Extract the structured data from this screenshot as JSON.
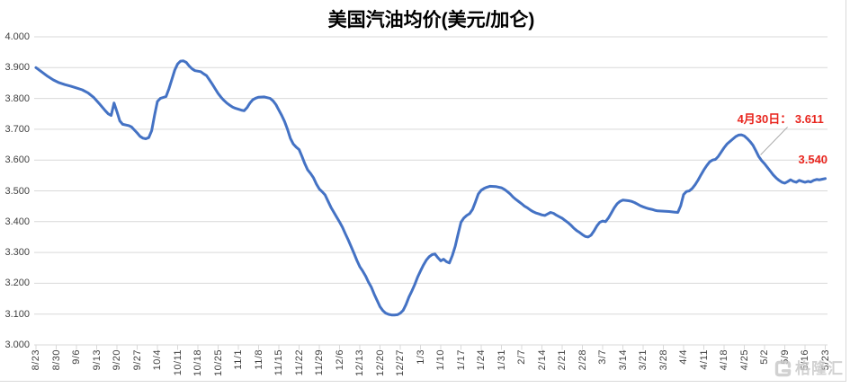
{
  "chart_data": {
    "type": "line",
    "title": "美国汽油均价(美元/加仑)",
    "xlabel": "",
    "ylabel": "",
    "ylim": [
      3.0,
      4.0
    ],
    "ytick_step": 0.1,
    "grid": "horizontal",
    "legend": "none",
    "series_name": "美国汽油均价",
    "ytick_labels": [
      "4.000",
      "3.900",
      "3.800",
      "3.700",
      "3.600",
      "3.500",
      "3.400",
      "3.300",
      "3.200",
      "3.100",
      "3.000"
    ],
    "xtick_labels": [
      "8/23",
      "8/30",
      "9/6",
      "9/13",
      "9/20",
      "9/27",
      "10/4",
      "10/11",
      "10/18",
      "10/25",
      "11/1",
      "11/8",
      "11/15",
      "11/22",
      "11/29",
      "12/6",
      "12/13",
      "12/20",
      "12/27",
      "1/3",
      "1/10",
      "1/17",
      "1/24",
      "1/31",
      "2/7",
      "2/14",
      "2/21",
      "2/28",
      "3/7",
      "3/14",
      "3/21",
      "3/28",
      "4/4",
      "4/11",
      "4/18",
      "4/25",
      "5/2",
      "5/9",
      "5/16",
      "5/23"
    ],
    "points": [
      [
        "8/23",
        3.9
      ],
      [
        "8/25",
        3.886
      ],
      [
        "8/27",
        3.872
      ],
      [
        "8/29",
        3.86
      ],
      [
        "8/31",
        3.851
      ],
      [
        "9/2",
        3.845
      ],
      [
        "9/4",
        3.84
      ],
      [
        "9/6",
        3.834
      ],
      [
        "9/8",
        3.828
      ],
      [
        "9/10",
        3.818
      ],
      [
        "9/12",
        3.803
      ],
      [
        "9/14",
        3.782
      ],
      [
        "9/16",
        3.76
      ],
      [
        "9/17",
        3.75
      ],
      [
        "9/18",
        3.745
      ],
      [
        "9/19",
        3.785
      ],
      [
        "9/20",
        3.757
      ],
      [
        "9/21",
        3.727
      ],
      [
        "9/22",
        3.716
      ],
      [
        "9/24",
        3.712
      ],
      [
        "9/25",
        3.708
      ],
      [
        "9/26",
        3.698
      ],
      [
        "9/27",
        3.688
      ],
      [
        "9/28",
        3.677
      ],
      [
        "9/29",
        3.671
      ],
      [
        "9/30",
        3.669
      ],
      [
        "10/1",
        3.673
      ],
      [
        "10/2",
        3.695
      ],
      [
        "10/3",
        3.745
      ],
      [
        "10/4",
        3.79
      ],
      [
        "10/5",
        3.8
      ],
      [
        "10/7",
        3.806
      ],
      [
        "10/8",
        3.832
      ],
      [
        "10/9",
        3.862
      ],
      [
        "10/10",
        3.892
      ],
      [
        "10/11",
        3.912
      ],
      [
        "10/12",
        3.921
      ],
      [
        "10/13",
        3.922
      ],
      [
        "10/14",
        3.917
      ],
      [
        "10/15",
        3.905
      ],
      [
        "10/16",
        3.896
      ],
      [
        "10/17",
        3.89
      ],
      [
        "10/19",
        3.887
      ],
      [
        "10/20",
        3.88
      ],
      [
        "10/21",
        3.874
      ],
      [
        "10/22",
        3.86
      ],
      [
        "10/23",
        3.846
      ],
      [
        "10/24",
        3.831
      ],
      [
        "10/25",
        3.816
      ],
      [
        "10/26",
        3.804
      ],
      [
        "10/27",
        3.794
      ],
      [
        "10/28",
        3.785
      ],
      [
        "10/29",
        3.778
      ],
      [
        "10/30",
        3.772
      ],
      [
        "10/31",
        3.768
      ],
      [
        "11/2",
        3.762
      ],
      [
        "11/3",
        3.76
      ],
      [
        "11/4",
        3.77
      ],
      [
        "11/5",
        3.785
      ],
      [
        "11/6",
        3.796
      ],
      [
        "11/7",
        3.801
      ],
      [
        "11/8",
        3.804
      ],
      [
        "11/10",
        3.805
      ],
      [
        "11/12",
        3.8
      ],
      [
        "11/13",
        3.792
      ],
      [
        "11/14",
        3.78
      ],
      [
        "11/15",
        3.762
      ],
      [
        "11/16",
        3.745
      ],
      [
        "11/17",
        3.725
      ],
      [
        "11/18",
        3.7
      ],
      [
        "11/19",
        3.67
      ],
      [
        "11/20",
        3.652
      ],
      [
        "11/21",
        3.642
      ],
      [
        "11/22",
        3.634
      ],
      [
        "11/23",
        3.612
      ],
      [
        "11/24",
        3.588
      ],
      [
        "11/25",
        3.568
      ],
      [
        "11/26",
        3.556
      ],
      [
        "11/27",
        3.542
      ],
      [
        "11/28",
        3.522
      ],
      [
        "11/29",
        3.506
      ],
      [
        "11/30",
        3.497
      ],
      [
        "12/1",
        3.487
      ],
      [
        "12/2",
        3.467
      ],
      [
        "12/3",
        3.447
      ],
      [
        "12/4",
        3.431
      ],
      [
        "12/5",
        3.415
      ],
      [
        "12/6",
        3.399
      ],
      [
        "12/7",
        3.382
      ],
      [
        "12/8",
        3.361
      ],
      [
        "12/9",
        3.341
      ],
      [
        "12/10",
        3.319
      ],
      [
        "12/11",
        3.297
      ],
      [
        "12/12",
        3.274
      ],
      [
        "12/13",
        3.254
      ],
      [
        "12/14",
        3.24
      ],
      [
        "12/15",
        3.224
      ],
      [
        "12/16",
        3.204
      ],
      [
        "12/17",
        3.187
      ],
      [
        "12/18",
        3.164
      ],
      [
        "12/19",
        3.144
      ],
      [
        "12/20",
        3.124
      ],
      [
        "12/21",
        3.111
      ],
      [
        "12/22",
        3.103
      ],
      [
        "12/23",
        3.099
      ],
      [
        "12/24",
        3.097
      ],
      [
        "12/25",
        3.097
      ],
      [
        "12/26",
        3.098
      ],
      [
        "12/27",
        3.103
      ],
      [
        "12/28",
        3.112
      ],
      [
        "12/29",
        3.131
      ],
      [
        "12/30",
        3.155
      ],
      [
        "12/31",
        3.175
      ],
      [
        "1/1",
        3.196
      ],
      [
        "1/2",
        3.22
      ],
      [
        "1/3",
        3.24
      ],
      [
        "1/4",
        3.259
      ],
      [
        "1/5",
        3.275
      ],
      [
        "1/6",
        3.286
      ],
      [
        "1/7",
        3.293
      ],
      [
        "1/8",
        3.295
      ],
      [
        "1/9",
        3.283
      ],
      [
        "1/10",
        3.273
      ],
      [
        "1/11",
        3.278
      ],
      [
        "1/12",
        3.27
      ],
      [
        "1/13",
        3.266
      ],
      [
        "1/14",
        3.29
      ],
      [
        "1/15",
        3.32
      ],
      [
        "1/16",
        3.36
      ],
      [
        "1/17",
        3.398
      ],
      [
        "1/18",
        3.412
      ],
      [
        "1/19",
        3.42
      ],
      [
        "1/20",
        3.426
      ],
      [
        "1/21",
        3.44
      ],
      [
        "1/22",
        3.464
      ],
      [
        "1/23",
        3.49
      ],
      [
        "1/24",
        3.502
      ],
      [
        "1/25",
        3.508
      ],
      [
        "1/26",
        3.512
      ],
      [
        "1/27",
        3.515
      ],
      [
        "1/29",
        3.514
      ],
      [
        "1/31",
        3.51
      ],
      [
        "2/1",
        3.505
      ],
      [
        "2/2",
        3.498
      ],
      [
        "2/3",
        3.49
      ],
      [
        "2/4",
        3.48
      ],
      [
        "2/5",
        3.472
      ],
      [
        "2/6",
        3.465
      ],
      [
        "2/7",
        3.458
      ],
      [
        "2/8",
        3.45
      ],
      [
        "2/9",
        3.445
      ],
      [
        "2/10",
        3.438
      ],
      [
        "2/11",
        3.432
      ],
      [
        "2/12",
        3.428
      ],
      [
        "2/13",
        3.425
      ],
      [
        "2/14",
        3.422
      ],
      [
        "2/15",
        3.42
      ],
      [
        "2/16",
        3.425
      ],
      [
        "2/17",
        3.43
      ],
      [
        "2/18",
        3.427
      ],
      [
        "2/19",
        3.421
      ],
      [
        "2/20",
        3.416
      ],
      [
        "2/21",
        3.411
      ],
      [
        "2/22",
        3.404
      ],
      [
        "2/23",
        3.397
      ],
      [
        "2/24",
        3.389
      ],
      [
        "2/25",
        3.379
      ],
      [
        "2/26",
        3.371
      ],
      [
        "2/27",
        3.365
      ],
      [
        "2/28",
        3.358
      ],
      [
        "3/1",
        3.352
      ],
      [
        "3/2",
        3.35
      ],
      [
        "3/3",
        3.356
      ],
      [
        "3/4",
        3.37
      ],
      [
        "3/5",
        3.386
      ],
      [
        "3/6",
        3.398
      ],
      [
        "3/7",
        3.402
      ],
      [
        "3/8",
        3.4
      ],
      [
        "3/9",
        3.412
      ],
      [
        "3/10",
        3.428
      ],
      [
        "3/11",
        3.445
      ],
      [
        "3/12",
        3.458
      ],
      [
        "3/13",
        3.466
      ],
      [
        "3/14",
        3.47
      ],
      [
        "3/16",
        3.468
      ],
      [
        "3/17",
        3.466
      ],
      [
        "3/18",
        3.462
      ],
      [
        "3/19",
        3.457
      ],
      [
        "3/20",
        3.452
      ],
      [
        "3/21",
        3.448
      ],
      [
        "3/22",
        3.445
      ],
      [
        "3/23",
        3.442
      ],
      [
        "3/24",
        3.44
      ],
      [
        "3/25",
        3.437
      ],
      [
        "3/26",
        3.435
      ],
      [
        "3/28",
        3.434
      ],
      [
        "3/30",
        3.433
      ],
      [
        "4/1",
        3.431
      ],
      [
        "4/2",
        3.43
      ],
      [
        "4/3",
        3.452
      ],
      [
        "4/4",
        3.488
      ],
      [
        "4/5",
        3.498
      ],
      [
        "4/6",
        3.5
      ],
      [
        "4/7",
        3.508
      ],
      [
        "4/8",
        3.52
      ],
      [
        "4/9",
        3.535
      ],
      [
        "4/10",
        3.552
      ],
      [
        "4/11",
        3.568
      ],
      [
        "4/12",
        3.582
      ],
      [
        "4/13",
        3.594
      ],
      [
        "4/14",
        3.6
      ],
      [
        "4/15",
        3.602
      ],
      [
        "4/16",
        3.612
      ],
      [
        "4/17",
        3.626
      ],
      [
        "4/18",
        3.64
      ],
      [
        "4/19",
        3.652
      ],
      [
        "4/20",
        3.66
      ],
      [
        "4/21",
        3.668
      ],
      [
        "4/22",
        3.676
      ],
      [
        "4/23",
        3.681
      ],
      [
        "4/24",
        3.682
      ],
      [
        "4/25",
        3.678
      ],
      [
        "4/26",
        3.67
      ],
      [
        "4/27",
        3.66
      ],
      [
        "4/28",
        3.648
      ],
      [
        "4/29",
        3.63
      ],
      [
        "4/30",
        3.611
      ],
      [
        "5/1",
        3.598
      ],
      [
        "5/2",
        3.588
      ],
      [
        "5/3",
        3.576
      ],
      [
        "5/4",
        3.564
      ],
      [
        "5/5",
        3.552
      ],
      [
        "5/6",
        3.542
      ],
      [
        "5/7",
        3.534
      ],
      [
        "5/8",
        3.528
      ],
      [
        "5/9",
        3.525
      ],
      [
        "5/10",
        3.53
      ],
      [
        "5/11",
        3.536
      ],
      [
        "5/12",
        3.531
      ],
      [
        "5/13",
        3.528
      ],
      [
        "5/14",
        3.534
      ],
      [
        "5/15",
        3.531
      ],
      [
        "5/16",
        3.528
      ],
      [
        "5/17",
        3.531
      ],
      [
        "5/18",
        3.529
      ],
      [
        "5/19",
        3.534
      ],
      [
        "5/20",
        3.537
      ],
      [
        "5/21",
        3.536
      ],
      [
        "5/22",
        3.538
      ],
      [
        "5/23",
        3.54
      ]
    ],
    "annotations": [
      {
        "type": "callout",
        "date": "4/30",
        "value": 3.611,
        "label": "4月30日： 3.611"
      },
      {
        "type": "end-label",
        "date": "5/23",
        "value": 3.54,
        "label": "3.540"
      }
    ]
  },
  "colors": {
    "line": "#4472c4",
    "grid": "#d9d9d9",
    "axis_text": "#404040",
    "annotation_red": "#e8251e",
    "leader_line": "#a6a6a6",
    "watermark": "#c9c9c9",
    "title_text": "#000000",
    "background": "#ffffff"
  },
  "watermark": {
    "text": "格隆汇"
  }
}
